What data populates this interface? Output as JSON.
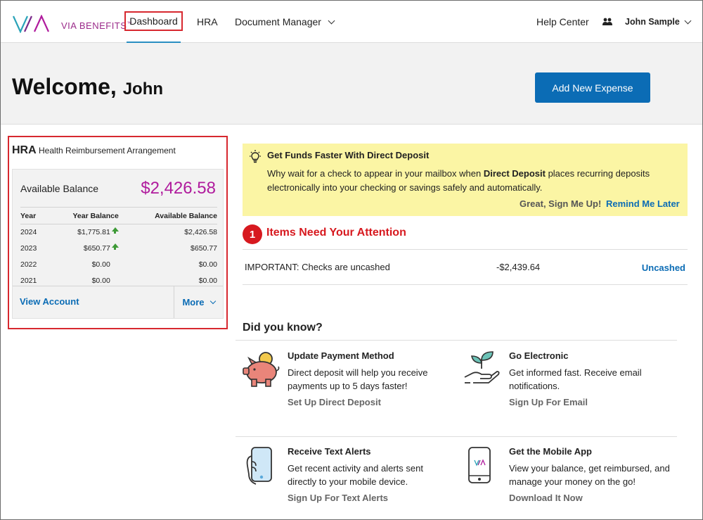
{
  "header": {
    "logo_text": "VIA BENEFITS",
    "logo_tm": "™",
    "nav": {
      "dashboard": "Dashboard",
      "hra": "HRA",
      "document_manager": "Document Manager",
      "help_center": "Help Center",
      "user": "John Sample"
    }
  },
  "welcome": {
    "greeting": "Welcome,",
    "name": "John",
    "add_button": "Add New Expense"
  },
  "hra": {
    "abbr": "HRA",
    "full_name": "Health Reimbursement Arrangement",
    "available_label": "Available Balance",
    "available_value": "$2,426.58",
    "columns": [
      "Year",
      "Year Balance",
      "Available Balance"
    ],
    "rows": [
      {
        "year": "2024",
        "year_balance": "$1,775.81",
        "available": "$2,426.58",
        "trend": "up"
      },
      {
        "year": "2023",
        "year_balance": "$650.77",
        "available": "$650.77",
        "trend": "up"
      },
      {
        "year": "2022",
        "year_balance": "$0.00",
        "available": "$0.00",
        "trend": ""
      },
      {
        "year": "2021",
        "year_balance": "$0.00",
        "available": "$0.00",
        "trend": ""
      }
    ],
    "view_account": "View Account",
    "more": "More"
  },
  "direct_deposit": {
    "title": "Get Funds Faster With Direct Deposit",
    "text_before": "Why wait for a check to appear in your mailbox when ",
    "text_bold": "Direct Deposit",
    "text_after": " places recurring deposits electronically into your checking or savings safely and automatically.",
    "sign_up": "Great, Sign Me Up!",
    "remind": "Remind Me Later"
  },
  "attention": {
    "count": "1",
    "title": "Items Need Your Attention",
    "item_desc": "IMPORTANT: Checks are uncashed",
    "item_amount": "-$2,439.64",
    "item_status": "Uncashed"
  },
  "did_you_know": {
    "title": "Did you know?",
    "tiles": [
      {
        "title": "Update Payment Method",
        "text": "Direct deposit will help you receive payments up to 5 days faster!",
        "link": "Set Up Direct Deposit",
        "icon": "piggy-bank-icon"
      },
      {
        "title": "Go Electronic",
        "text": "Get informed fast. Receive email notifications.",
        "link": "Sign Up For Email",
        "icon": "hand-plant-icon"
      },
      {
        "title": "Receive Text Alerts",
        "text": "Get recent activity and alerts sent directly to your mobile device.",
        "link": "Sign Up For Text Alerts",
        "icon": "hand-phone-icon"
      },
      {
        "title": "Get the Mobile App",
        "text": "View your balance, get reimbursed, and manage your money on the go!",
        "link": "Download It Now",
        "icon": "mobile-app-icon"
      }
    ]
  },
  "colors": {
    "brand_purple": "#b01b9d",
    "primary_blue": "#0b6cb5",
    "alert_red": "#d7191f",
    "banner_yellow": "#fbf5a4",
    "trend_green": "#3e9a37"
  }
}
